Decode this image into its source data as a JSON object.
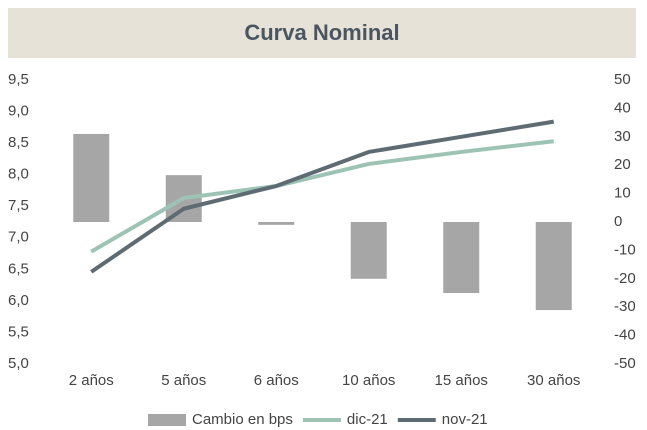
{
  "chart_data": {
    "type": "bar_line",
    "title": "Curva Nominal",
    "categories": [
      "2 años",
      "5 años",
      "6 años",
      "10 años",
      "15 años",
      "30 años"
    ],
    "series": [
      {
        "name": "Cambio en bps",
        "type": "bar",
        "axis": "y2",
        "color": "#a6a6a6",
        "values": [
          31,
          16.5,
          -1,
          -20,
          -25,
          -31
        ]
      },
      {
        "name": "dic-21",
        "type": "line",
        "color": "#9dc3b5",
        "values": [
          6.78,
          7.63,
          7.82,
          8.17,
          8.36,
          8.53
        ]
      },
      {
        "name": "nov-21",
        "type": "line",
        "color": "#5f6b73",
        "values": [
          6.46,
          7.46,
          7.82,
          8.36,
          8.6,
          8.84
        ]
      }
    ],
    "ylim": [
      5.0,
      9.5
    ],
    "yticks": [
      {
        "value": 5.0,
        "label": "5,0"
      },
      {
        "value": 5.5,
        "label": "5,5"
      },
      {
        "value": 6.0,
        "label": "6,0"
      },
      {
        "value": 6.5,
        "label": "6,5"
      },
      {
        "value": 7.0,
        "label": "7,0"
      },
      {
        "value": 7.5,
        "label": "7,5"
      },
      {
        "value": 8.0,
        "label": "8,0"
      },
      {
        "value": 8.5,
        "label": "8,5"
      },
      {
        "value": 9.0,
        "label": "9,0"
      },
      {
        "value": 9.5,
        "label": "9,5"
      }
    ],
    "y2lim": [
      -50,
      50
    ],
    "y2ticks": [
      -50,
      -40,
      -30,
      -20,
      -10,
      0,
      10,
      20,
      30,
      40,
      50
    ],
    "legend": "bottom"
  }
}
